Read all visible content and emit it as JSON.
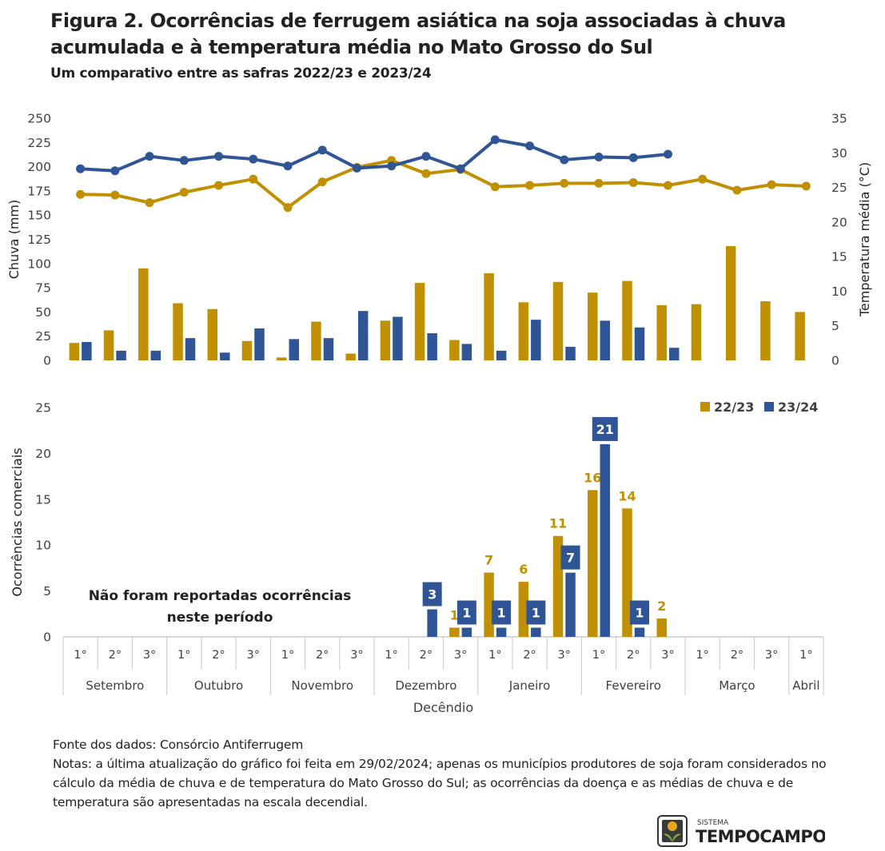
{
  "title": "Figura 2. Ocorrências de ferrugem asiática na soja associadas à chuva acumulada e à temperatura média no Mato Grosso do Sul",
  "subtitle": "Um comparativo entre as safras 2022/23 e 2023/24",
  "colors": {
    "safra_2223": "#C09000",
    "safra_2324": "#2F5597",
    "axis": "#BFBFBF",
    "text": "#404040"
  },
  "chart_data": [
    {
      "type": "bar+line",
      "panel": "clima",
      "ylabel_left": "Chuva (mm)",
      "ylabel_right": "Temperatura média (°C)",
      "ylim_left": [
        0,
        250
      ],
      "yticks_left": [
        0,
        25,
        50,
        75,
        100,
        125,
        150,
        175,
        200,
        225,
        250
      ],
      "ylim_right": [
        0,
        35
      ],
      "yticks_right": [
        0,
        5,
        10,
        15,
        20,
        25,
        30,
        35
      ],
      "series": [
        {
          "type": "bar",
          "axis": "left",
          "color": "#C09000",
          "values": [
            18,
            31,
            95,
            59,
            53,
            20,
            3,
            40,
            7,
            41,
            80,
            21,
            90,
            60,
            81,
            70,
            82,
            57,
            58,
            118,
            61,
            50
          ]
        },
        {
          "type": "bar",
          "axis": "left",
          "color": "#2F5597",
          "values": [
            19,
            10,
            10,
            23,
            8,
            33,
            22,
            23,
            51,
            45,
            28,
            17,
            10,
            42,
            14,
            41,
            34,
            13,
            null,
            null,
            null,
            null
          ]
        },
        {
          "type": "line",
          "axis": "right",
          "color": "#C09000",
          "values": [
            24,
            23.9,
            22.8,
            24.3,
            25.3,
            26.2,
            22.1,
            25.8,
            27.9,
            28.9,
            27,
            27.6,
            25.1,
            25.3,
            25.6,
            25.6,
            25.7,
            25.3,
            26.2,
            24.6,
            25.4,
            25.2
          ]
        },
        {
          "type": "line",
          "axis": "right",
          "color": "#2F5597",
          "values": [
            27.7,
            27.4,
            29.5,
            28.9,
            29.5,
            29.1,
            28.1,
            30.4,
            27.8,
            28.1,
            29.5,
            27.7,
            31.9,
            31,
            29,
            29.4,
            29.3,
            29.8,
            null,
            null,
            null,
            null
          ]
        }
      ]
    },
    {
      "type": "bar",
      "panel": "ocorrencias",
      "ylabel": "Ocorrências comerciais",
      "xlabel": "Decêndio",
      "ylim": [
        0,
        25
      ],
      "yticks": [
        0,
        5,
        10,
        15,
        20,
        25
      ],
      "legend": "top-right",
      "categories": [
        "1°",
        "2°",
        "3°",
        "1°",
        "2°",
        "3°",
        "1°",
        "2°",
        "3°",
        "1°",
        "2°",
        "3°",
        "1°",
        "2°",
        "3°",
        "1°",
        "2°",
        "3°",
        "1°",
        "2°",
        "3°",
        "1°"
      ],
      "months": [
        {
          "label": "Setembro",
          "span": 3
        },
        {
          "label": "Outubro",
          "span": 3
        },
        {
          "label": "Novembro",
          "span": 3
        },
        {
          "label": "Dezembro",
          "span": 3
        },
        {
          "label": "Janeiro",
          "span": 3
        },
        {
          "label": "Fevereiro",
          "span": 3
        },
        {
          "label": "Março",
          "span": 3
        },
        {
          "label": "Abril",
          "span": 1
        }
      ],
      "series": [
        {
          "name": "22/23",
          "color": "#C09000",
          "values": [
            0,
            0,
            0,
            0,
            0,
            0,
            0,
            0,
            0,
            0,
            0,
            1,
            7,
            6,
            11,
            16,
            14,
            2,
            0,
            0,
            0,
            0
          ]
        },
        {
          "name": "23/24",
          "color": "#2F5597",
          "values": [
            0,
            0,
            0,
            0,
            0,
            0,
            0,
            0,
            0,
            0,
            3,
            1,
            1,
            1,
            7,
            21,
            1,
            0,
            0,
            0,
            0,
            0
          ]
        }
      ],
      "annotation": "Não foram reportadas ocorrências neste período"
    }
  ],
  "notes": {
    "source": "Fonte dos dados: Consórcio Antiferrugem",
    "text": "Notas: a última atualização do gráfico foi feita em 29/02/2024;  apenas os municípios produtores de soja foram considerados no cálculo da média de chuva e de temperatura do Mato Grosso do Sul; as ocorrências da doença e as médias de chuva e de temperatura são apresentadas na escala decendial."
  },
  "logo": {
    "small": "SISTEMA",
    "main": "TEMPOCAMPO"
  }
}
